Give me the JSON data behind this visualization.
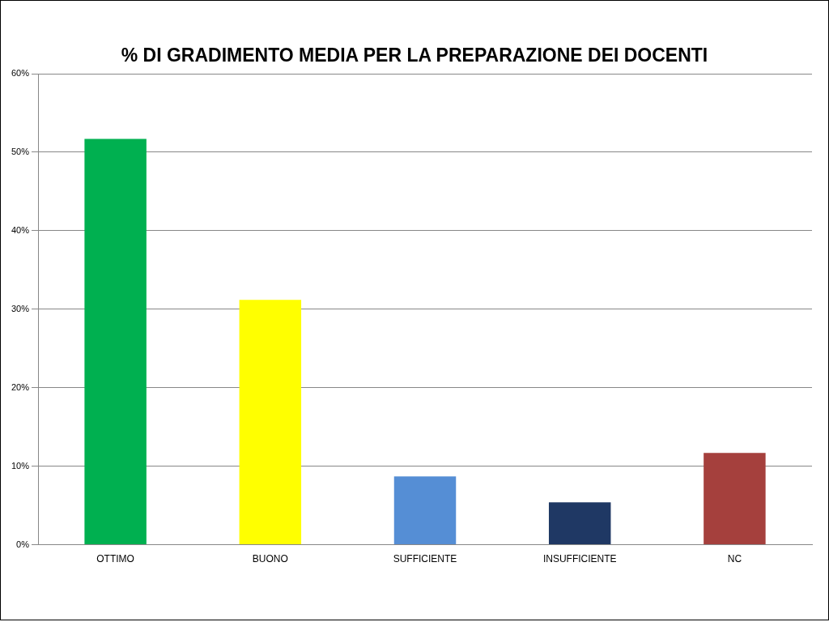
{
  "chart_data": {
    "type": "bar",
    "title": "% DI GRADIMENTO MEDIA PER LA PREPARAZIONE DEI DOCENTI",
    "categories": [
      "OTTIMO",
      "BUONO",
      "SUFFICIENTE",
      "INSUFFICIENTE",
      "NC"
    ],
    "values": [
      51.7,
      31.2,
      8.7,
      5.4,
      11.7
    ],
    "colors": [
      "#00b050",
      "#ffff00",
      "#558ed5",
      "#1f3864",
      "#a5403d"
    ],
    "ylim": [
      0,
      60
    ],
    "yticks": [
      {
        "value": 0,
        "label": "0%"
      },
      {
        "value": 10,
        "label": "10%"
      },
      {
        "value": 20,
        "label": "20%"
      },
      {
        "value": 30,
        "label": "30%"
      },
      {
        "value": 40,
        "label": "40%"
      },
      {
        "value": 50,
        "label": "50%"
      },
      {
        "value": 60,
        "label": "60%"
      }
    ],
    "grid": "y",
    "legend": false
  }
}
